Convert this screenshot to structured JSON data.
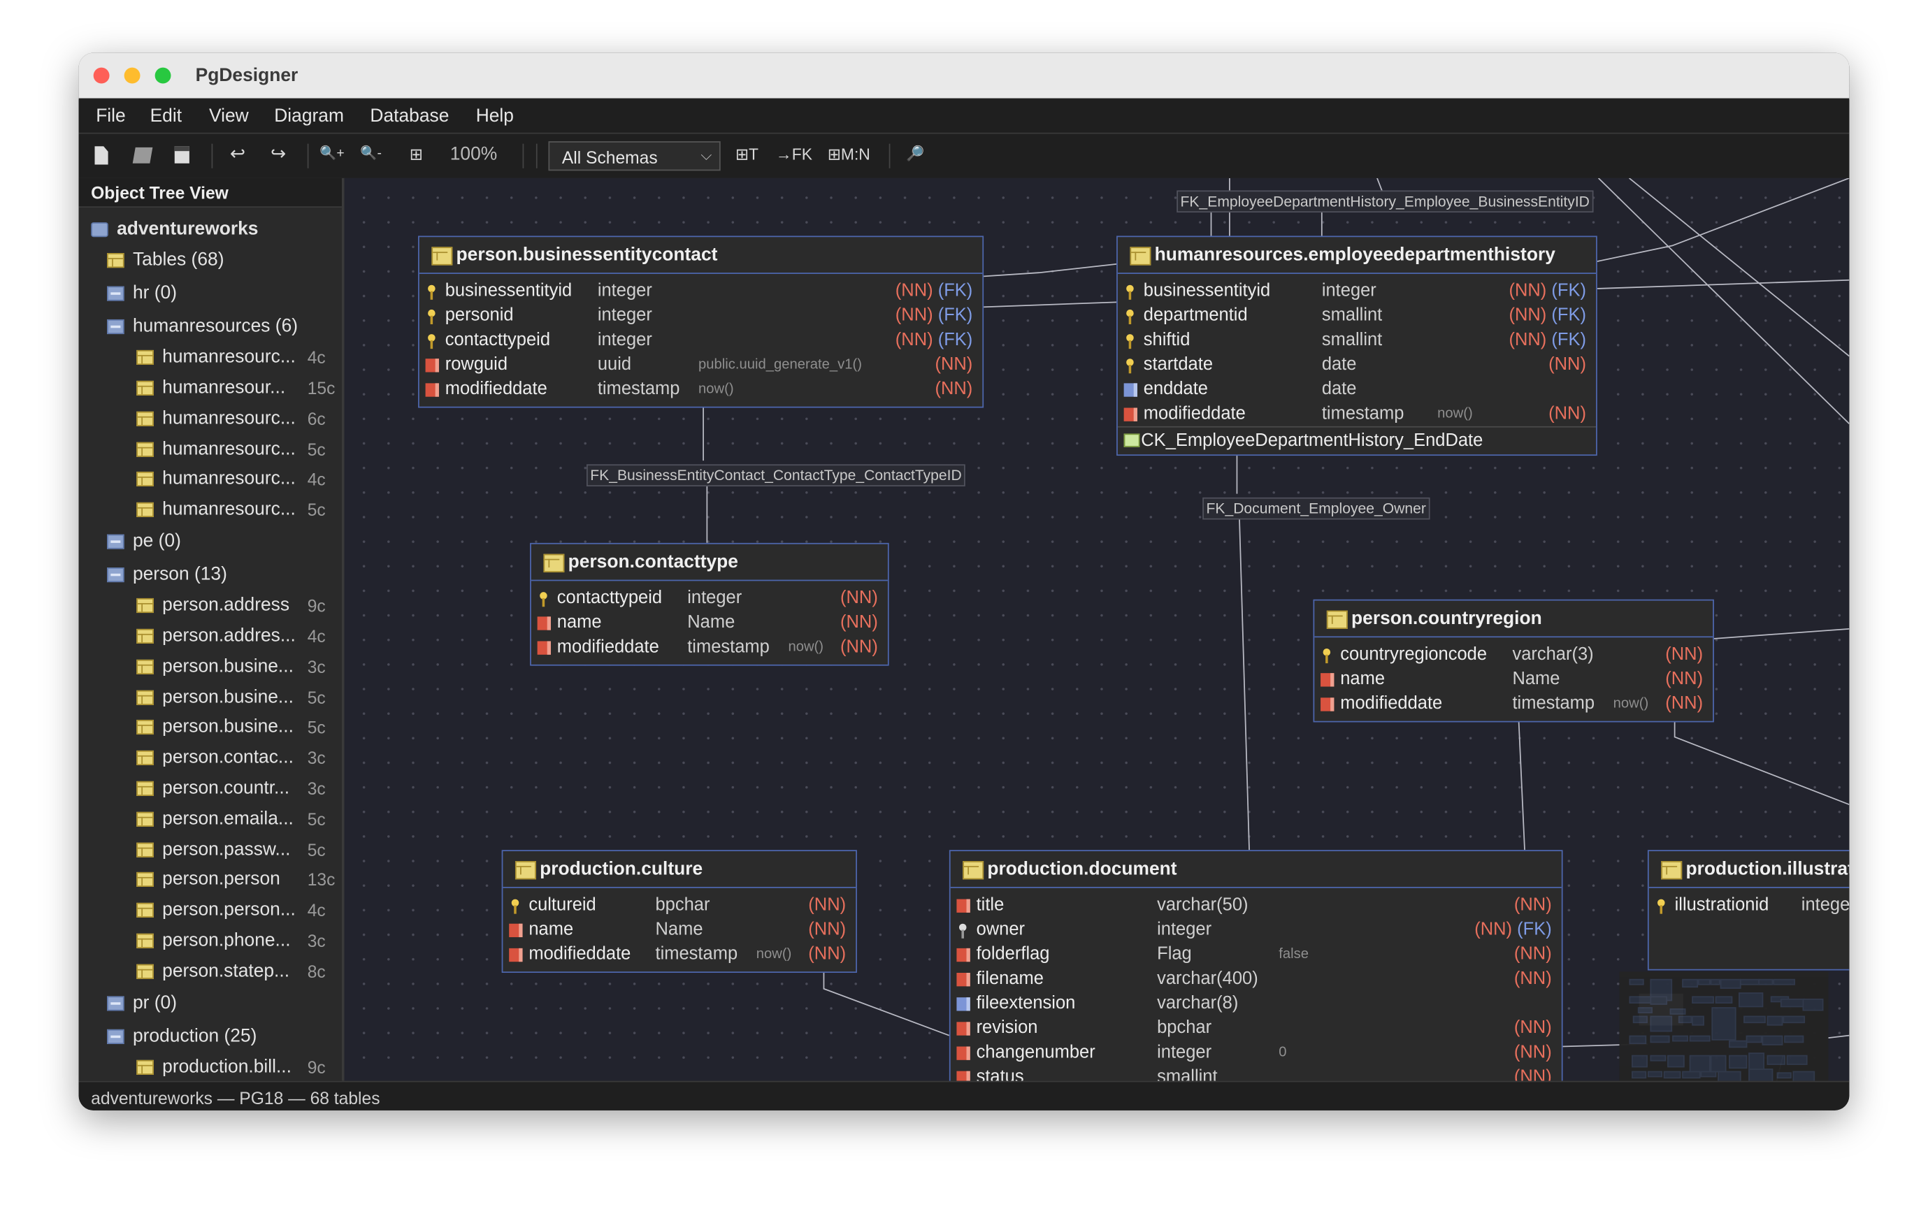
{
  "window": {
    "title": "PgDesigner"
  },
  "menu": [
    "File",
    "Edit",
    "View",
    "Diagram",
    "Database",
    "Help"
  ],
  "toolbar": {
    "new_icon": "new-file-icon",
    "open_icon": "open-folder-icon",
    "save_icon": "save-icon",
    "undo": "↩",
    "redo": "↪",
    "zoom_in": "🔍+",
    "zoom_out": "🔍-",
    "fit": "⊞",
    "zoom_level": "100%",
    "schema_select": "All Schemas",
    "add_table": "⊞T",
    "add_fk": "→FK",
    "add_mn": "⊞M:N",
    "search": "🔎"
  },
  "sidebar": {
    "title": "Object Tree View",
    "items": [
      {
        "label": "adventureworks",
        "count": "",
        "icon": "db",
        "level": 0,
        "bold": true
      },
      {
        "label": "Tables (68)",
        "count": "",
        "icon": "table",
        "level": 1
      },
      {
        "label": "hr (0)",
        "count": "",
        "icon": "schema",
        "level": 1
      },
      {
        "label": "humanresources (6)",
        "count": "",
        "icon": "schema",
        "level": 1
      },
      {
        "label": "humanresourc...",
        "count": "4c",
        "icon": "table",
        "level": 2
      },
      {
        "label": "humanresour...",
        "count": "15c",
        "icon": "table",
        "level": 2
      },
      {
        "label": "humanresourc...",
        "count": "6c",
        "icon": "table",
        "level": 2
      },
      {
        "label": "humanresourc...",
        "count": "5c",
        "icon": "table",
        "level": 2
      },
      {
        "label": "humanresourc...",
        "count": "4c",
        "icon": "table",
        "level": 2
      },
      {
        "label": "humanresourc...",
        "count": "5c",
        "icon": "table",
        "level": 2
      },
      {
        "label": "pe (0)",
        "count": "",
        "icon": "schema",
        "level": 1
      },
      {
        "label": "person (13)",
        "count": "",
        "icon": "schema",
        "level": 1
      },
      {
        "label": "person.address",
        "count": "9c",
        "icon": "table",
        "level": 2
      },
      {
        "label": "person.addres...",
        "count": "4c",
        "icon": "table",
        "level": 2
      },
      {
        "label": "person.busine...",
        "count": "3c",
        "icon": "table",
        "level": 2
      },
      {
        "label": "person.busine...",
        "count": "5c",
        "icon": "table",
        "level": 2
      },
      {
        "label": "person.busine...",
        "count": "5c",
        "icon": "table",
        "level": 2
      },
      {
        "label": "person.contac...",
        "count": "3c",
        "icon": "table",
        "level": 2
      },
      {
        "label": "person.countr...",
        "count": "3c",
        "icon": "table",
        "level": 2
      },
      {
        "label": "person.emaila...",
        "count": "5c",
        "icon": "table",
        "level": 2
      },
      {
        "label": "person.passw...",
        "count": "5c",
        "icon": "table",
        "level": 2
      },
      {
        "label": "person.person",
        "count": "13c",
        "icon": "table",
        "level": 2
      },
      {
        "label": "person.person...",
        "count": "4c",
        "icon": "table",
        "level": 2
      },
      {
        "label": "person.phone...",
        "count": "3c",
        "icon": "table",
        "level": 2
      },
      {
        "label": "person.statep...",
        "count": "8c",
        "icon": "table",
        "level": 2
      },
      {
        "label": "pr (0)",
        "count": "",
        "icon": "schema",
        "level": 1
      },
      {
        "label": "production (25)",
        "count": "",
        "icon": "schema",
        "level": 1
      },
      {
        "label": "production.bill...",
        "count": "9c",
        "icon": "table",
        "level": 2
      }
    ]
  },
  "fk_labels": [
    "FK_EmployeeDepartmentHistory_Employee_BusinessEntityID",
    "FK_BusinessEntityContact_ContactType_ContactTypeID",
    "FK_Document_Employee_Owner"
  ],
  "tables": [
    {
      "id": "t1",
      "name": "person.businessentitycontact",
      "columns": [
        {
          "name": "businessentityid",
          "type": "integer",
          "default": "",
          "flags": [
            "(NN)",
            "(FK)"
          ],
          "icon": "pk"
        },
        {
          "name": "personid",
          "type": "integer",
          "default": "",
          "flags": [
            "(NN)",
            "(FK)"
          ],
          "icon": "pk"
        },
        {
          "name": "contacttypeid",
          "type": "integer",
          "default": "",
          "flags": [
            "(NN)",
            "(FK)"
          ],
          "icon": "pk"
        },
        {
          "name": "rowguid",
          "type": "uuid",
          "default": "public.uuid_generate_v1()",
          "flags": [
            "(NN)"
          ],
          "icon": "nn"
        },
        {
          "name": "modifieddate",
          "type": "timestamp",
          "default": "now()",
          "flags": [
            "(NN)"
          ],
          "icon": "nn"
        }
      ]
    },
    {
      "id": "t2",
      "name": "humanresources.employeedepartmenthistory",
      "columns": [
        {
          "name": "businessentityid",
          "type": "integer",
          "default": "",
          "flags": [
            "(NN)",
            "(FK)"
          ],
          "icon": "pk"
        },
        {
          "name": "departmentid",
          "type": "smallint",
          "default": "",
          "flags": [
            "(NN)",
            "(FK)"
          ],
          "icon": "pk"
        },
        {
          "name": "shiftid",
          "type": "smallint",
          "default": "",
          "flags": [
            "(NN)",
            "(FK)"
          ],
          "icon": "pk"
        },
        {
          "name": "startdate",
          "type": "date",
          "default": "",
          "flags": [
            "(NN)"
          ],
          "icon": "pk"
        },
        {
          "name": "enddate",
          "type": "date",
          "default": "",
          "flags": [],
          "icon": "null"
        },
        {
          "name": "modifieddate",
          "type": "timestamp",
          "default": "now()",
          "flags": [
            "(NN)"
          ],
          "icon": "nn"
        }
      ],
      "checks": [
        "CK_EmployeeDepartmentHistory_EndDate"
      ]
    },
    {
      "id": "t3",
      "name": "person.contacttype",
      "columns": [
        {
          "name": "contacttypeid",
          "type": "integer",
          "default": "",
          "flags": [
            "(NN)"
          ],
          "icon": "pk"
        },
        {
          "name": "name",
          "type": "Name",
          "default": "",
          "flags": [
            "(NN)"
          ],
          "icon": "nn"
        },
        {
          "name": "modifieddate",
          "type": "timestamp",
          "default": "now()",
          "flags": [
            "(NN)"
          ],
          "icon": "nn"
        }
      ]
    },
    {
      "id": "t4",
      "name": "person.countryregion",
      "columns": [
        {
          "name": "countryregioncode",
          "type": "varchar(3)",
          "default": "",
          "flags": [
            "(NN)"
          ],
          "icon": "pk"
        },
        {
          "name": "name",
          "type": "Name",
          "default": "",
          "flags": [
            "(NN)"
          ],
          "icon": "nn"
        },
        {
          "name": "modifieddate",
          "type": "timestamp",
          "default": "now()",
          "flags": [
            "(NN)"
          ],
          "icon": "nn"
        }
      ]
    },
    {
      "id": "t5",
      "name": "production.culture",
      "columns": [
        {
          "name": "cultureid",
          "type": "bpchar",
          "default": "",
          "flags": [
            "(NN)"
          ],
          "icon": "pk"
        },
        {
          "name": "name",
          "type": "Name",
          "default": "",
          "flags": [
            "(NN)"
          ],
          "icon": "nn"
        },
        {
          "name": "modifieddate",
          "type": "timestamp",
          "default": "now()",
          "flags": [
            "(NN)"
          ],
          "icon": "nn"
        }
      ]
    },
    {
      "id": "t6",
      "name": "production.document",
      "columns": [
        {
          "name": "title",
          "type": "varchar(50)",
          "default": "",
          "flags": [
            "(NN)"
          ],
          "icon": "nn"
        },
        {
          "name": "owner",
          "type": "integer",
          "default": "",
          "flags": [
            "(NN)",
            "(FK)"
          ],
          "icon": "fk"
        },
        {
          "name": "folderflag",
          "type": "Flag",
          "default": "false",
          "flags": [
            "(NN)"
          ],
          "icon": "nn"
        },
        {
          "name": "filename",
          "type": "varchar(400)",
          "default": "",
          "flags": [
            "(NN)"
          ],
          "icon": "nn"
        },
        {
          "name": "fileextension",
          "type": "varchar(8)",
          "default": "",
          "flags": [],
          "icon": "null"
        },
        {
          "name": "revision",
          "type": "bpchar",
          "default": "",
          "flags": [
            "(NN)"
          ],
          "icon": "nn"
        },
        {
          "name": "changenumber",
          "type": "integer",
          "default": "0",
          "flags": [
            "(NN)"
          ],
          "icon": "nn"
        },
        {
          "name": "status",
          "type": "smallint",
          "default": "",
          "flags": [
            "(NN)"
          ],
          "icon": "nn"
        }
      ]
    },
    {
      "id": "t7",
      "name": "production.illustration",
      "columns": [
        {
          "name": "illustrationid",
          "type": "integer",
          "default": "",
          "flags": [],
          "icon": "pk"
        }
      ]
    }
  ],
  "status": "adventureworks — PG18 — 68 tables",
  "colors": {
    "canvas": "#22232d",
    "table_border": "#4d66ad",
    "nn": "#e8705d",
    "fk": "#7f9ce6",
    "pk": "#f1cf52"
  }
}
